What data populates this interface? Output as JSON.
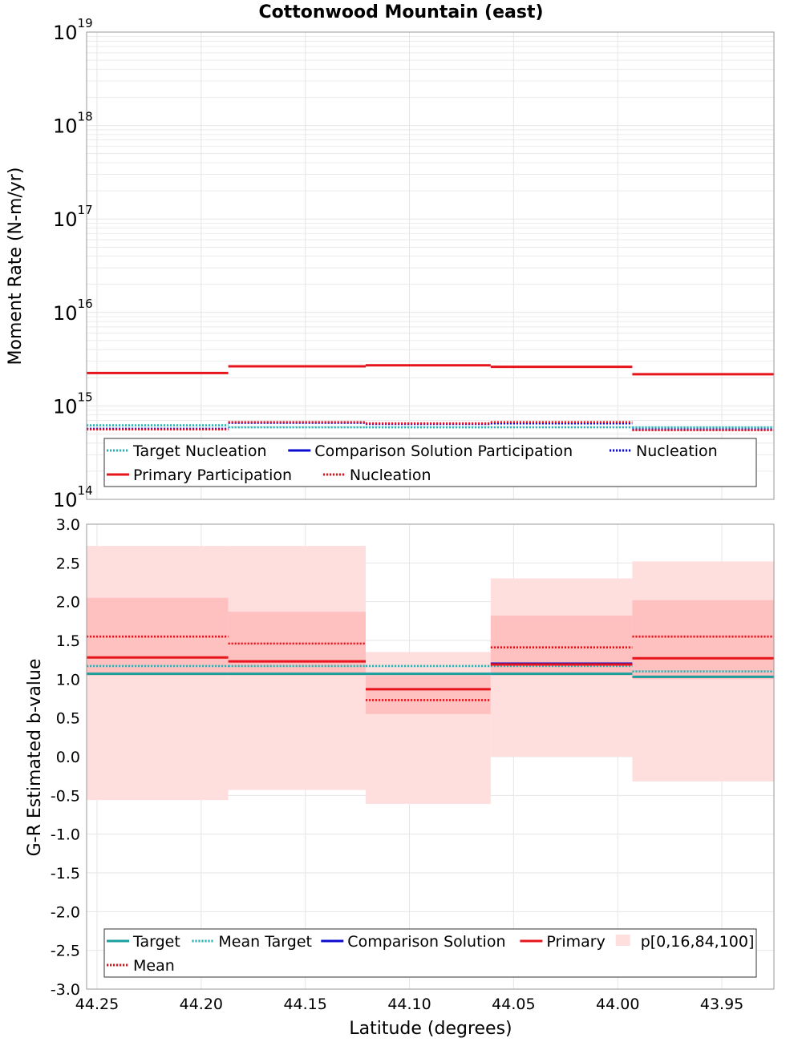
{
  "title": "Cottonwood Mountain (east)",
  "colors": {
    "teal": "#1a9e9e",
    "teal_dot": "#28b4b4",
    "blue": "#0b0bd0",
    "red": "#e8141c",
    "band_outer": "#ffdede",
    "band_inner": "#ffc0c0",
    "grid": "#e6e6e6",
    "frame": "#9a9a9a"
  },
  "chart_data": [
    {
      "type": "line",
      "name": "moment_rate",
      "ylabel": "Moment Rate (N-m/yr)",
      "y_scale": "log",
      "ylim": [
        100000000000000.0,
        1e+19
      ],
      "y_tick_labels": [
        {
          "base": "10",
          "exp": "14"
        },
        {
          "base": "10",
          "exp": "15"
        },
        {
          "base": "10",
          "exp": "16"
        },
        {
          "base": "10",
          "exp": "17"
        },
        {
          "base": "10",
          "exp": "18"
        },
        {
          "base": "10",
          "exp": "19"
        }
      ],
      "xlim": [
        44.255,
        43.925
      ],
      "segments": [
        [
          44.255,
          44.187
        ],
        [
          44.187,
          44.121
        ],
        [
          44.121,
          44.061
        ],
        [
          44.061,
          43.993
        ],
        [
          43.993,
          43.925
        ]
      ],
      "series": [
        {
          "name": "Target Nucleation",
          "style": "dot",
          "color": "#28b4b4",
          "values": [
            620000000000000.0,
            590000000000000.0,
            590000000000000.0,
            590000000000000.0,
            590000000000000.0
          ]
        },
        {
          "name": "Nucleation",
          "style": "dot",
          "color": "#0b0bd0",
          "values": [
            570000000000000.0,
            660000000000000.0,
            640000000000000.0,
            650000000000000.0,
            560000000000000.0
          ]
        },
        {
          "name": "Primary Participation",
          "style": "solid",
          "color": "#e8141c",
          "values": [
            2250000000000000.0,
            2650000000000000.0,
            2720000000000000.0,
            2620000000000000.0,
            2180000000000000.0
          ]
        },
        {
          "name": "Nucleation",
          "style": "dot",
          "color": "#e8141c",
          "values": [
            560000000000000.0,
            670000000000000.0,
            650000000000000.0,
            670000000000000.0,
            550000000000000.0
          ]
        }
      ],
      "legend": {
        "position": "bottom",
        "entries": [
          {
            "label": "Target Nucleation",
            "style": "dot",
            "color": "#28b4b4"
          },
          {
            "label": "Comparison Solution Participation",
            "style": "solid",
            "color": "#0b0bd0"
          },
          {
            "label": "Nucleation",
            "style": "dot",
            "color": "#0b0bd0"
          },
          {
            "label": "Primary Participation",
            "style": "solid",
            "color": "#e8141c"
          },
          {
            "label": "Nucleation",
            "style": "dot",
            "color": "#e8141c"
          }
        ]
      }
    },
    {
      "type": "line",
      "name": "b_value",
      "xlabel": "Latitude (degrees)",
      "ylabel": "G-R Estimated b-value",
      "ylim": [
        -3.0,
        3.0
      ],
      "y_ticks": [
        "-3.0",
        "-2.5",
        "-2.0",
        "-1.5",
        "-1.0",
        "-0.5",
        "0.0",
        "0.5",
        "1.0",
        "1.5",
        "2.0",
        "2.5",
        "3.0"
      ],
      "x_ticks": [
        "44.25",
        "44.20",
        "44.15",
        "44.10",
        "44.05",
        "44.00",
        "43.95"
      ],
      "xlim": [
        44.255,
        43.925
      ],
      "segments": [
        [
          44.255,
          44.187
        ],
        [
          44.187,
          44.121
        ],
        [
          44.121,
          44.061
        ],
        [
          44.061,
          43.993
        ],
        [
          43.993,
          43.925
        ]
      ],
      "bands": {
        "name": "p[0,16,84,100]",
        "p0": [
          -0.56,
          -0.43,
          -0.61,
          0.0,
          -0.32
        ],
        "p16": [
          1.05,
          1.05,
          0.55,
          1.05,
          1.0
        ],
        "p84": [
          2.05,
          1.87,
          1.05,
          1.82,
          2.02
        ],
        "p100": [
          2.72,
          2.72,
          1.35,
          2.3,
          2.52
        ]
      },
      "series": [
        {
          "name": "Target",
          "style": "solid",
          "color": "#1a9e9e",
          "values": [
            1.07,
            1.07,
            1.07,
            1.07,
            1.03
          ]
        },
        {
          "name": "Mean Target",
          "style": "dot",
          "color": "#28b4b4",
          "values": [
            1.17,
            1.17,
            1.17,
            1.17,
            1.1
          ]
        },
        {
          "name": "Comparison Solution",
          "style": "solid",
          "color": "#0b0bd0",
          "values": [
            null,
            null,
            null,
            1.2,
            null
          ]
        },
        {
          "name": "Primary",
          "style": "solid",
          "color": "#e8141c",
          "values": [
            1.28,
            1.23,
            0.87,
            1.19,
            1.27
          ]
        },
        {
          "name": "Mean",
          "style": "dot",
          "color": "#e8141c",
          "values": [
            1.55,
            1.46,
            0.73,
            1.41,
            1.55
          ]
        }
      ],
      "legend": {
        "position": "bottom",
        "entries": [
          {
            "label": "Target",
            "style": "solid",
            "color": "#1a9e9e"
          },
          {
            "label": "Mean Target",
            "style": "dot",
            "color": "#28b4b4"
          },
          {
            "label": "Comparison Solution",
            "style": "solid",
            "color": "#0b0bd0"
          },
          {
            "label": "Primary",
            "style": "solid",
            "color": "#e8141c"
          },
          {
            "label": "p[0,16,84,100]",
            "style": "band",
            "color": "#ffdede"
          },
          {
            "label": "Mean",
            "style": "dot",
            "color": "#e8141c"
          }
        ]
      }
    }
  ]
}
